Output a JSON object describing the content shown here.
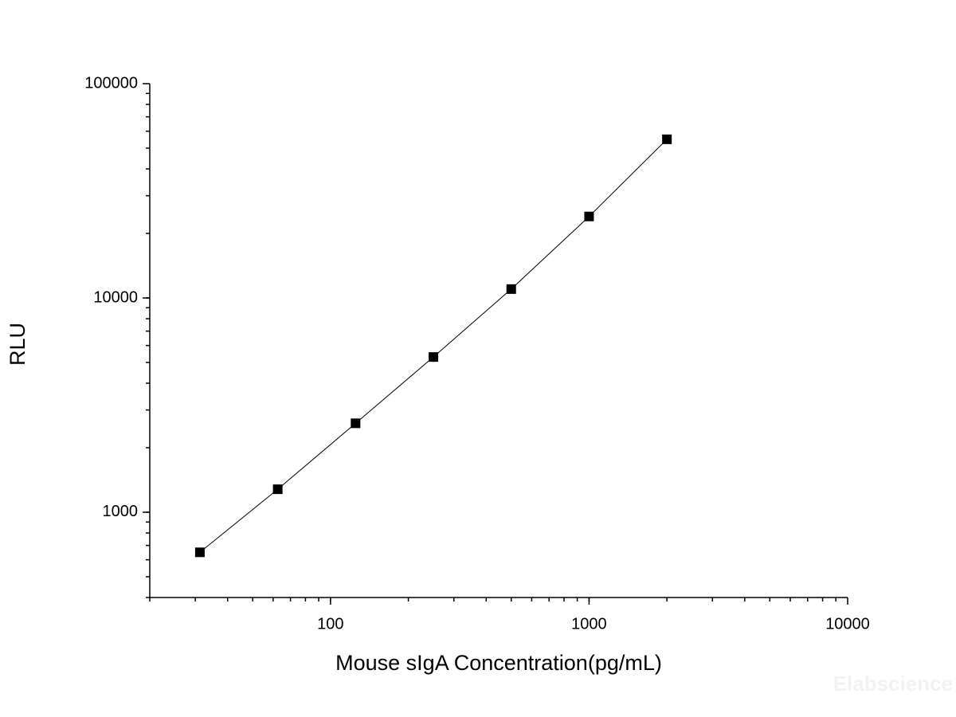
{
  "chart_data": {
    "type": "scatter-line",
    "x_label": "Mouse sIgA Concentration(pg/mL)",
    "y_label": "RLU",
    "watermark": "Elabscience",
    "x": [
      31.25,
      62.5,
      125,
      250,
      500,
      1000,
      2000
    ],
    "series": [
      {
        "color": "#000000",
        "values": [
          650,
          1280,
          2600,
          5300,
          11000,
          24000,
          55000
        ]
      }
    ],
    "xlim": [
      20,
      10000
    ],
    "ylim": [
      400,
      100000
    ],
    "xticks": [
      100,
      1000,
      10000
    ],
    "yticks": [
      1000,
      10000,
      100000
    ],
    "xscale": "log",
    "yscale": "log",
    "grid": false
  }
}
